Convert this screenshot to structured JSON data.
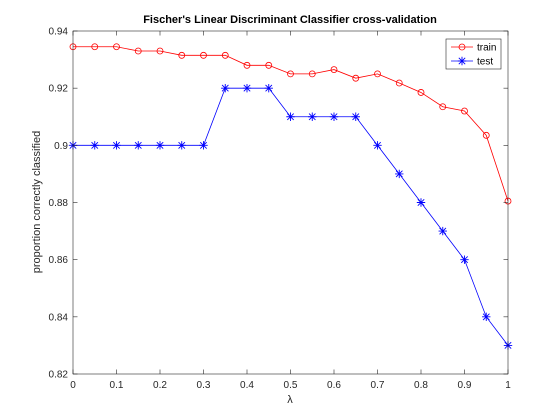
{
  "chart_data": {
    "type": "line",
    "title": "Fischer's Linear Discriminant Classifier cross-validation",
    "xlabel": "λ",
    "ylabel": "proportion correctly classified",
    "xlim": [
      0,
      1
    ],
    "ylim": [
      0.82,
      0.94
    ],
    "xticks": [
      0,
      0.1,
      0.2,
      0.3,
      0.4,
      0.5,
      0.6,
      0.7,
      0.8,
      0.9,
      1
    ],
    "yticks": [
      0.82,
      0.84,
      0.86,
      0.88,
      0.9,
      0.92,
      0.94
    ],
    "xtick_labels": [
      "0",
      "0.1",
      "0.2",
      "0.3",
      "0.4",
      "0.5",
      "0.6",
      "0.7",
      "0.8",
      "0.9",
      "1"
    ],
    "ytick_labels": [
      "0.82",
      "0.84",
      "0.86",
      "0.88",
      "0.9",
      "0.92",
      "0.94"
    ],
    "grid": false,
    "legend_position": "top-right",
    "x": [
      0,
      0.05,
      0.1,
      0.15,
      0.2,
      0.25,
      0.3,
      0.35,
      0.4,
      0.45,
      0.5,
      0.55,
      0.6,
      0.65,
      0.7,
      0.75,
      0.8,
      0.85,
      0.9,
      0.95,
      1
    ],
    "series": [
      {
        "name": "train",
        "color": "#ff0000",
        "marker": "circle",
        "values": [
          0.9345,
          0.9345,
          0.9345,
          0.933,
          0.933,
          0.9315,
          0.9315,
          0.9315,
          0.928,
          0.928,
          0.925,
          0.925,
          0.9265,
          0.9235,
          0.925,
          0.9218,
          0.9185,
          0.9135,
          0.912,
          0.9035,
          0.8805
        ]
      },
      {
        "name": "test",
        "color": "#0000ff",
        "marker": "asterisk",
        "values": [
          0.9,
          0.9,
          0.9,
          0.9,
          0.9,
          0.9,
          0.9,
          0.92,
          0.92,
          0.92,
          0.91,
          0.91,
          0.91,
          0.91,
          0.9,
          0.89,
          0.88,
          0.87,
          0.86,
          0.84,
          0.83
        ]
      }
    ]
  }
}
